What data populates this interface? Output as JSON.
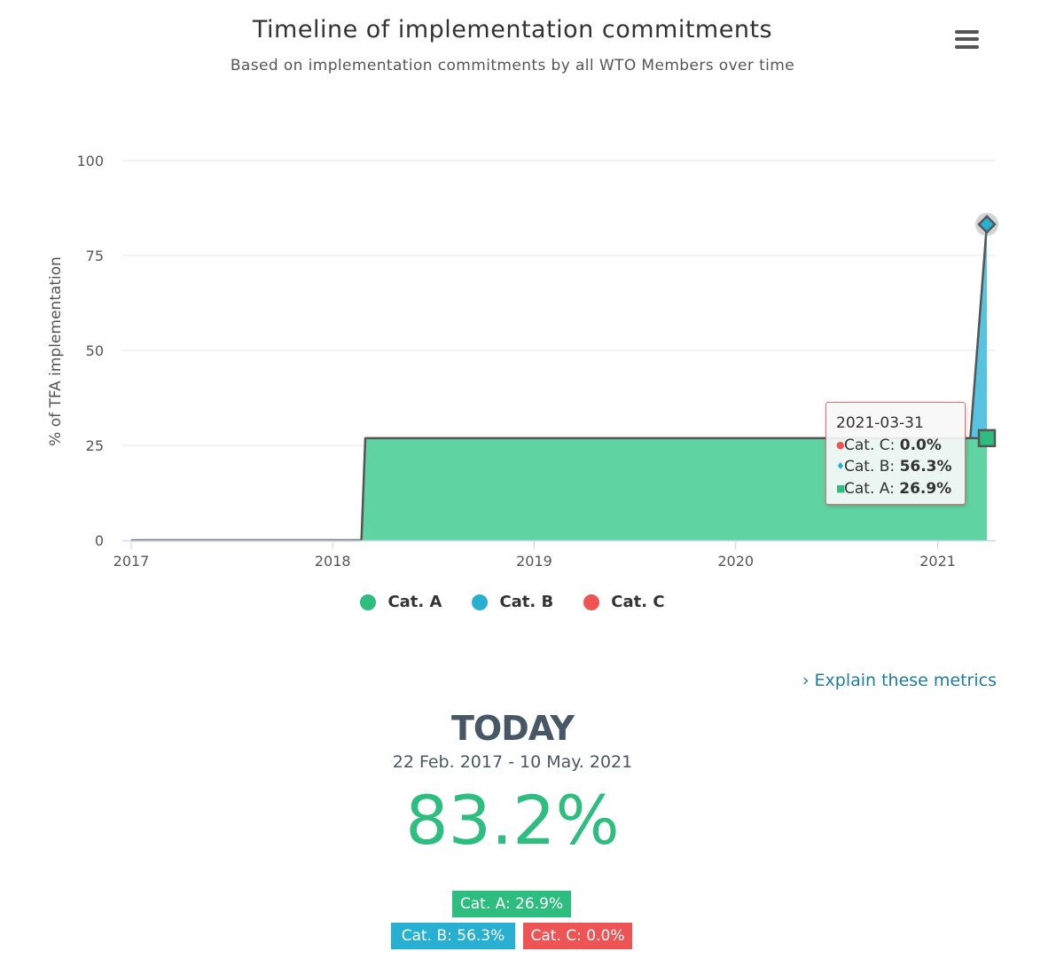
{
  "header": {
    "title": "Timeline of implementation commitments",
    "subtitle": "Based on implementation commitments by all WTO Members over time",
    "menu_icon": "hamburger-menu-icon"
  },
  "chart_data": {
    "type": "area",
    "stacked": true,
    "title": "Timeline of implementation commitments",
    "subtitle": "Based on implementation commitments by all WTO Members over time",
    "ylabel": "% of TFA implementation",
    "xlabel": "",
    "ylim": [
      0,
      100
    ],
    "xlim": [
      "2017-01-01",
      "2021-03-31"
    ],
    "yticks": [
      0,
      25,
      50,
      75,
      100
    ],
    "xticks": [
      "2017",
      "2018",
      "2019",
      "2020",
      "2021"
    ],
    "grid": true,
    "legend_position": "bottom-center",
    "series": [
      {
        "name": "Cat. A",
        "color": "#2dbd7e",
        "marker": "square",
        "points": [
          {
            "x": "2017-01-01",
            "y": 0
          },
          {
            "x": "2018-02-22",
            "y": 0
          },
          {
            "x": "2018-03-01",
            "y": 26.9
          },
          {
            "x": "2021-03-31",
            "y": 26.9
          }
        ]
      },
      {
        "name": "Cat. B",
        "color": "#27b0d1",
        "marker": "diamond",
        "points": [
          {
            "x": "2017-01-01",
            "y": 0
          },
          {
            "x": "2021-03-01",
            "y": 0
          },
          {
            "x": "2021-03-31",
            "y": 56.3
          }
        ]
      },
      {
        "name": "Cat. C",
        "color": "#ef5455",
        "marker": "circle",
        "points": [
          {
            "x": "2017-01-01",
            "y": 0
          },
          {
            "x": "2021-03-31",
            "y": 0
          }
        ]
      }
    ],
    "tooltip": {
      "date": "2021-03-31",
      "rows": [
        {
          "label": "Cat. C:",
          "value": "0.0%",
          "symbol": "●",
          "color": "#ef5455"
        },
        {
          "label": "Cat. B:",
          "value": "56.3%",
          "symbol": "♦",
          "color": "#27b0d1"
        },
        {
          "label": "Cat. A:",
          "value": "26.9%",
          "symbol": "■",
          "color": "#2dbd7e"
        }
      ]
    }
  },
  "explain_link": "› Explain these metrics",
  "today": {
    "title": "TODAY",
    "range": "22 Feb. 2017 - 10 May. 2021",
    "total": "83.2%",
    "badges": [
      {
        "label": "Cat. A: 26.9%",
        "color": "#2dbd7e"
      },
      {
        "label": "Cat. B: 56.3%",
        "color": "#27b0d1"
      },
      {
        "label": "Cat. C: 0.0%",
        "color": "#ef5454"
      }
    ]
  }
}
